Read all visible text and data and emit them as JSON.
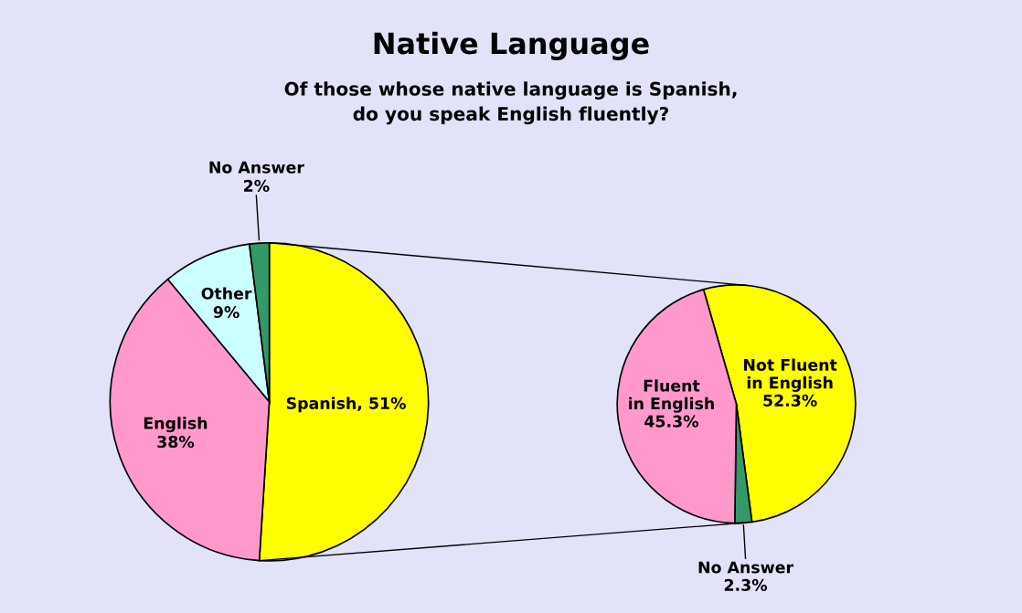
{
  "chart_data": [
    {
      "type": "pie",
      "title": "Native Language",
      "subtitle": "Of those whose native language is Spanish,\ndo you speak English fluently?",
      "categories": [
        "Spanish",
        "English",
        "Other",
        "No Answer"
      ],
      "values": [
        51,
        38,
        9,
        2
      ],
      "colors": [
        "#ffff00",
        "#ff99cc",
        "#ccffff",
        "#339966"
      ],
      "value_labels": [
        ", 51%",
        "38%",
        "9%",
        "2%"
      ]
    },
    {
      "type": "pie",
      "categories": [
        "Not Fluent\nin English",
        "No Answer",
        "Fluent\nin English"
      ],
      "values": [
        52.3,
        2.3,
        45.3
      ],
      "colors": [
        "#ffff00",
        "#339966",
        "#ff99cc"
      ],
      "value_labels": [
        "52.3%",
        "2.3%",
        "45.3%"
      ]
    }
  ]
}
